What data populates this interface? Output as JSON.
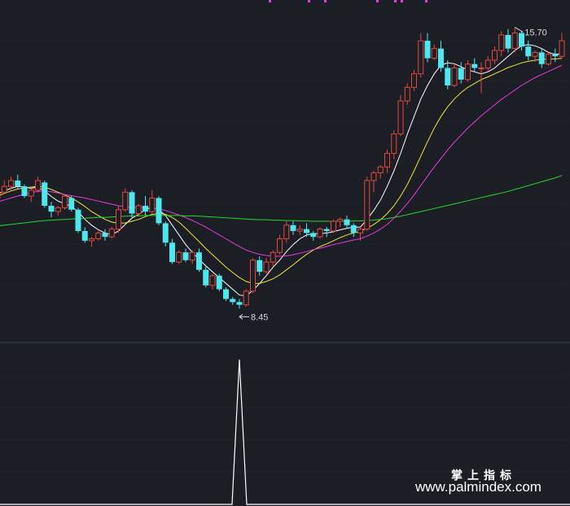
{
  "chart_data": [
    {
      "type": "candlestick",
      "title": "",
      "xlabel": "",
      "ylabel": "",
      "ylim": [
        7.6,
        16.4
      ],
      "grid": true,
      "annotations": {
        "high_label": "15.70",
        "low_label": "8.45",
        "high_value": 15.7,
        "low_value": 8.45
      },
      "ohlc": [
        [
          11.3,
          11.6,
          11.25,
          11.45
        ],
        [
          11.45,
          11.75,
          11.4,
          11.6
        ],
        [
          11.6,
          11.85,
          11.5,
          11.75
        ],
        [
          11.75,
          11.9,
          11.55,
          11.6
        ],
        [
          11.6,
          11.65,
          11.3,
          11.35
        ],
        [
          11.35,
          11.55,
          11.2,
          11.5
        ],
        [
          11.5,
          11.85,
          11.45,
          11.75
        ],
        [
          11.7,
          11.75,
          11.05,
          11.1
        ],
        [
          11.1,
          11.2,
          10.8,
          10.95
        ],
        [
          10.95,
          11.1,
          10.85,
          11.05
        ],
        [
          11.05,
          11.4,
          11.0,
          11.35
        ],
        [
          11.3,
          11.35,
          10.95,
          11.0
        ],
        [
          11.0,
          11.05,
          10.4,
          10.45
        ],
        [
          10.45,
          10.55,
          10.15,
          10.2
        ],
        [
          10.2,
          10.3,
          10.05,
          10.25
        ],
        [
          10.25,
          10.45,
          10.2,
          10.4
        ],
        [
          10.4,
          10.5,
          10.2,
          10.3
        ],
        [
          10.3,
          10.55,
          10.25,
          10.5
        ],
        [
          10.5,
          11.1,
          10.4,
          11.0
        ],
        [
          11.0,
          11.55,
          10.95,
          11.45
        ],
        [
          11.45,
          11.5,
          10.8,
          10.9
        ],
        [
          10.9,
          11.15,
          10.85,
          11.1
        ],
        [
          11.1,
          11.35,
          10.85,
          10.95
        ],
        [
          10.95,
          11.5,
          10.9,
          11.3
        ],
        [
          11.3,
          11.35,
          10.6,
          10.65
        ],
        [
          10.65,
          10.7,
          10.05,
          10.15
        ],
        [
          10.15,
          10.25,
          9.6,
          9.65
        ],
        [
          9.65,
          9.95,
          9.6,
          9.9
        ],
        [
          9.9,
          10.0,
          9.65,
          9.7
        ],
        [
          9.7,
          9.95,
          9.6,
          9.9
        ],
        [
          9.9,
          10.0,
          9.4,
          9.45
        ],
        [
          9.45,
          9.55,
          9.0,
          9.05
        ],
        [
          9.05,
          9.35,
          8.95,
          9.3
        ],
        [
          9.3,
          9.35,
          8.9,
          8.95
        ],
        [
          8.95,
          9.0,
          8.65,
          8.7
        ],
        [
          8.7,
          8.75,
          8.55,
          8.62
        ],
        [
          8.62,
          8.7,
          8.45,
          8.55
        ],
        [
          8.55,
          8.95,
          8.5,
          8.9
        ],
        [
          8.9,
          9.75,
          8.85,
          9.7
        ],
        [
          9.7,
          9.8,
          9.3,
          9.4
        ],
        [
          9.4,
          9.75,
          9.35,
          9.65
        ],
        [
          9.65,
          9.95,
          9.55,
          9.9
        ],
        [
          9.9,
          10.35,
          9.85,
          10.25
        ],
        [
          10.25,
          10.7,
          10.15,
          10.6
        ],
        [
          10.6,
          10.7,
          10.35,
          10.45
        ],
        [
          10.45,
          10.6,
          10.35,
          10.5
        ],
        [
          10.5,
          10.65,
          10.3,
          10.4
        ],
        [
          10.4,
          10.45,
          10.2,
          10.3
        ],
        [
          10.3,
          10.55,
          10.25,
          10.5
        ],
        [
          10.5,
          10.55,
          10.3,
          10.45
        ],
        [
          10.45,
          10.75,
          10.4,
          10.7
        ],
        [
          10.7,
          10.8,
          10.55,
          10.75
        ],
        [
          10.75,
          10.85,
          10.5,
          10.6
        ],
        [
          10.6,
          10.65,
          10.3,
          10.4
        ],
        [
          10.4,
          10.55,
          10.2,
          10.5
        ],
        [
          10.5,
          11.85,
          10.45,
          11.75
        ],
        [
          11.75,
          12.0,
          11.45,
          11.95
        ],
        [
          11.95,
          12.15,
          11.8,
          12.1
        ],
        [
          12.1,
          12.55,
          11.95,
          12.45
        ],
        [
          12.45,
          13.05,
          12.3,
          12.95
        ],
        [
          12.95,
          13.95,
          12.9,
          13.8
        ],
        [
          13.8,
          14.25,
          13.7,
          14.15
        ],
        [
          14.15,
          14.6,
          14.05,
          14.5
        ],
        [
          14.5,
          15.55,
          14.4,
          15.35
        ],
        [
          15.35,
          15.55,
          14.8,
          14.9
        ],
        [
          14.9,
          15.25,
          14.85,
          15.15
        ],
        [
          15.15,
          15.35,
          14.55,
          14.65
        ],
        [
          14.65,
          14.85,
          14.1,
          14.2
        ],
        [
          14.2,
          14.75,
          14.15,
          14.65
        ],
        [
          14.65,
          14.8,
          14.25,
          14.35
        ],
        [
          14.35,
          14.85,
          14.3,
          14.75
        ],
        [
          14.75,
          14.9,
          14.55,
          14.65
        ],
        [
          14.65,
          14.8,
          14.0,
          14.65
        ],
        [
          14.65,
          14.95,
          14.55,
          14.85
        ],
        [
          14.85,
          15.2,
          14.75,
          15.1
        ],
        [
          15.1,
          15.6,
          14.95,
          15.5
        ],
        [
          15.5,
          15.65,
          15.05,
          15.15
        ],
        [
          15.15,
          15.7,
          15.05,
          15.55
        ],
        [
          15.55,
          15.6,
          15.1,
          15.2
        ],
        [
          15.2,
          15.35,
          14.85,
          14.95
        ],
        [
          14.95,
          15.1,
          14.8,
          15.05
        ],
        [
          15.05,
          15.15,
          14.65,
          14.75
        ],
        [
          14.75,
          15.05,
          14.7,
          15.0
        ],
        [
          15.0,
          15.15,
          14.8,
          14.95
        ],
        [
          14.95,
          15.55,
          14.9,
          15.35
        ]
      ],
      "ma_lines": [
        {
          "color": "#ffffff",
          "values": [
            11.4,
            11.48,
            11.55,
            11.6,
            11.58,
            11.55,
            11.58,
            11.48,
            11.34,
            11.22,
            11.15,
            11.08,
            10.95,
            10.75,
            10.6,
            10.48,
            10.4,
            10.36,
            10.45,
            10.62,
            10.78,
            10.88,
            11.0,
            11.06,
            11.0,
            10.85,
            10.6,
            10.35,
            10.1,
            9.9,
            9.72,
            9.55,
            9.4,
            9.25,
            9.1,
            8.95,
            8.8,
            8.78,
            8.92,
            9.1,
            9.3,
            9.52,
            9.7,
            9.92,
            10.1,
            10.25,
            10.35,
            10.38,
            10.38,
            10.4,
            10.43,
            10.48,
            10.52,
            10.55,
            10.55,
            10.75,
            10.98,
            11.25,
            11.6,
            12.0,
            12.45,
            12.95,
            13.4,
            13.85,
            14.2,
            14.5,
            14.72,
            14.78,
            14.76,
            14.68,
            14.6,
            14.55,
            14.5,
            14.55,
            14.65,
            14.8,
            14.95,
            15.1,
            15.22,
            15.25,
            15.22,
            15.15,
            15.05,
            15.0,
            15.02
          ]
        },
        {
          "color": "#f5e53a",
          "values": [
            11.35,
            11.42,
            11.48,
            11.53,
            11.56,
            11.58,
            11.6,
            11.58,
            11.52,
            11.45,
            11.38,
            11.3,
            11.2,
            11.08,
            10.95,
            10.85,
            10.75,
            10.68,
            10.65,
            10.66,
            10.7,
            10.75,
            10.82,
            10.88,
            10.9,
            10.88,
            10.8,
            10.68,
            10.52,
            10.35,
            10.18,
            10.0,
            9.84,
            9.68,
            9.52,
            9.38,
            9.25,
            9.15,
            9.1,
            9.1,
            9.15,
            9.22,
            9.32,
            9.45,
            9.58,
            9.72,
            9.85,
            9.96,
            10.05,
            10.12,
            10.2,
            10.28,
            10.35,
            10.4,
            10.44,
            10.52,
            10.62,
            10.74,
            10.9,
            11.1,
            11.35,
            11.65,
            12.0,
            12.38,
            12.75,
            13.1,
            13.4,
            13.65,
            13.85,
            14.02,
            14.15,
            14.25,
            14.35,
            14.42,
            14.5,
            14.58,
            14.66,
            14.72,
            14.78,
            14.82,
            14.85,
            14.87,
            14.88,
            14.88,
            14.9
          ]
        },
        {
          "color": "#e83ae0",
          "values": [
            11.2,
            11.25,
            11.3,
            11.35,
            11.4,
            11.44,
            11.47,
            11.48,
            11.46,
            11.43,
            11.39,
            11.36,
            11.33,
            11.3,
            11.26,
            11.22,
            11.18,
            11.14,
            11.1,
            11.08,
            11.06,
            11.05,
            11.05,
            11.04,
            11.02,
            10.98,
            10.92,
            10.86,
            10.8,
            10.72,
            10.64,
            10.55,
            10.45,
            10.35,
            10.25,
            10.15,
            10.05,
            9.96,
            9.9,
            9.85,
            9.82,
            9.8,
            9.8,
            9.81,
            9.84,
            9.88,
            9.92,
            9.97,
            10.01,
            10.05,
            10.1,
            10.14,
            10.18,
            10.22,
            10.25,
            10.32,
            10.4,
            10.5,
            10.62,
            10.78,
            10.96,
            11.16,
            11.38,
            11.62,
            11.86,
            12.1,
            12.32,
            12.54,
            12.74,
            12.92,
            13.1,
            13.26,
            13.42,
            13.56,
            13.7,
            13.84,
            13.96,
            14.08,
            14.2,
            14.3,
            14.4,
            14.48,
            14.56,
            14.64,
            14.72
          ]
        },
        {
          "color": "#2bd62b",
          "values": [
            10.58,
            10.6,
            10.62,
            10.64,
            10.66,
            10.68,
            10.7,
            10.72,
            10.73,
            10.74,
            10.75,
            10.76,
            10.77,
            10.78,
            10.79,
            10.8,
            10.8,
            10.81,
            10.82,
            10.83,
            10.84,
            10.84,
            10.85,
            10.85,
            10.85,
            10.85,
            10.85,
            10.85,
            10.84,
            10.84,
            10.83,
            10.82,
            10.81,
            10.8,
            10.79,
            10.78,
            10.77,
            10.76,
            10.75,
            10.74,
            10.74,
            10.73,
            10.73,
            10.72,
            10.72,
            10.71,
            10.71,
            10.7,
            10.7,
            10.7,
            10.7,
            10.7,
            10.7,
            10.71,
            10.71,
            10.72,
            10.73,
            10.75,
            10.77,
            10.8,
            10.83,
            10.87,
            10.91,
            10.95,
            10.99,
            11.03,
            11.07,
            11.11,
            11.15,
            11.19,
            11.23,
            11.27,
            11.31,
            11.35,
            11.39,
            11.43,
            11.47,
            11.52,
            11.57,
            11.62,
            11.67,
            11.72,
            11.77,
            11.82,
            11.88
          ]
        }
      ]
    },
    {
      "type": "line",
      "title": "",
      "series": [
        {
          "color": "#ffffff",
          "values": [
            0,
            0,
            0,
            0,
            0,
            0,
            0,
            0,
            0,
            0,
            0,
            0,
            0,
            0,
            0,
            0,
            0,
            0,
            0,
            0,
            0,
            0,
            0,
            0,
            0,
            0,
            0,
            0,
            0,
            0,
            0,
            0,
            0,
            0,
            0,
            0,
            0,
            0,
            0,
            0,
            0,
            0,
            0,
            0,
            0,
            0,
            0,
            0,
            0,
            0,
            0,
            0,
            0,
            0,
            0,
            0,
            0,
            0,
            0,
            0,
            0,
            0,
            0,
            0,
            0,
            0,
            0,
            0,
            0,
            0,
            0,
            0,
            0,
            0,
            0,
            0,
            0,
            0,
            0,
            0,
            0,
            0,
            0,
            0,
            0
          ]
        }
      ],
      "spikes": [
        {
          "index": 36,
          "value": 1
        }
      ],
      "ylim": [
        0,
        1.0
      ]
    }
  ],
  "watermark": {
    "line1": "掌上指标",
    "line2": "www.palmindex.com"
  },
  "colors": {
    "background": "#1b1e25",
    "up": "#e8453c",
    "down": "#4de8ef",
    "grid": "#2f333c"
  }
}
